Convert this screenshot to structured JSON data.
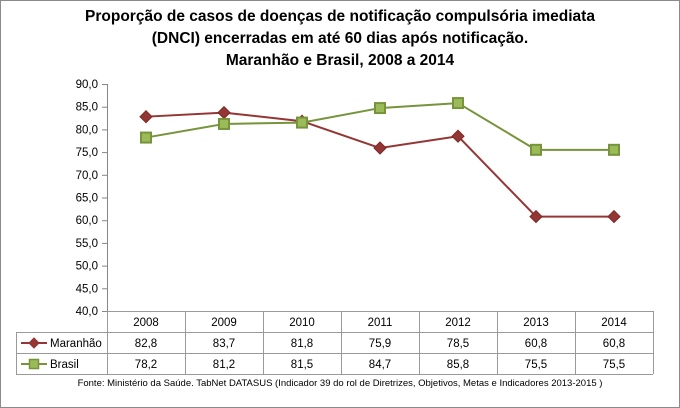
{
  "chart_data": {
    "type": "line",
    "title": [
      "Proporção de casos de doenças de notificação compulsória imediata",
      "(DNCI) encerradas em até 60 dias após notificação.",
      "Maranhão e Brasil, 2008 a 2014"
    ],
    "xlabel": "",
    "ylabel": "",
    "categories": [
      "2008",
      "2009",
      "2010",
      "2011",
      "2012",
      "2013",
      "2014"
    ],
    "ylim": [
      40,
      90
    ],
    "ytick_step": 5,
    "yticks": [
      "90,0",
      "85,0",
      "80,0",
      "75,0",
      "70,0",
      "65,0",
      "60,0",
      "55,0",
      "50,0",
      "45,0",
      "40,0"
    ],
    "grid": false,
    "legend": "data-table-left",
    "series": [
      {
        "name": "Maranhão",
        "values": [
          82.8,
          83.7,
          81.8,
          75.9,
          78.5,
          60.8,
          60.8
        ],
        "labels": [
          "82,8",
          "83,7",
          "81,8",
          "75,9",
          "78,5",
          "60,8",
          "60,8"
        ],
        "color": "#943634",
        "marker": "diamond"
      },
      {
        "name": "Brasil",
        "values": [
          78.2,
          81.2,
          81.5,
          84.7,
          85.8,
          75.5,
          75.5
        ],
        "labels": [
          "78,2",
          "81,2",
          "81,5",
          "84,7",
          "85,8",
          "75,5",
          "75,5"
        ],
        "color": "#77933c",
        "marker_fill": "#9bbb59",
        "marker": "square"
      }
    ],
    "source": "Fonte: Ministério da Saúde. TabNet DATASUS (Indicador 39 do rol de Diretrizes, Objetivos, Metas e Indicadores 2013-2015 )"
  }
}
